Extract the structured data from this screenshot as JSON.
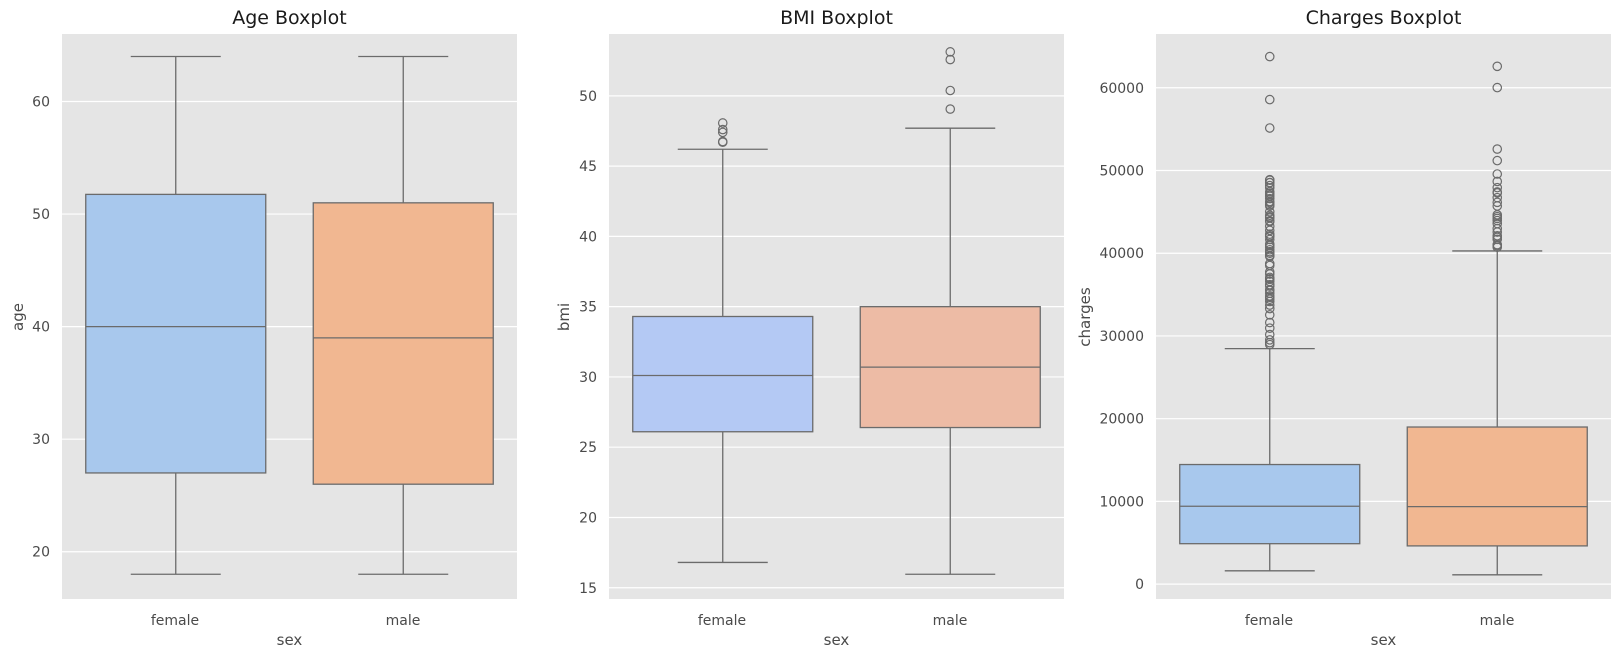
{
  "chart_data": [
    {
      "type": "boxplot",
      "title": "Age Boxplot",
      "xlabel": "sex",
      "ylabel": "age",
      "categories": [
        "female",
        "male"
      ],
      "ylim": [
        15.8,
        66
      ],
      "yticks": [
        20,
        30,
        40,
        50,
        60
      ],
      "ytick_labels": [
        "20",
        "30",
        "40",
        "50",
        "60"
      ],
      "grid": true,
      "boxes": [
        {
          "category": "female",
          "color": "#a8c8ed",
          "whisker_low": 18,
          "q1": 27,
          "median": 40,
          "q3": 51.75,
          "whisker_high": 64,
          "outliers": []
        },
        {
          "category": "male",
          "color": "#f1b791",
          "whisker_low": 18,
          "q1": 26,
          "median": 39,
          "q3": 51,
          "whisker_high": 64,
          "outliers": []
        }
      ]
    },
    {
      "type": "boxplot",
      "title": "BMI Boxplot",
      "xlabel": "sex",
      "ylabel": "bmi",
      "categories": [
        "female",
        "male"
      ],
      "ylim": [
        14.2,
        54.4
      ],
      "yticks": [
        15,
        20,
        25,
        30,
        35,
        40,
        45,
        50
      ],
      "ytick_labels": [
        "15",
        "20",
        "25",
        "30",
        "35",
        "40",
        "45",
        "50"
      ],
      "grid": true,
      "boxes": [
        {
          "category": "female",
          "color": "#b4c9f4",
          "whisker_low": 16.8,
          "q1": 26.1,
          "median": 30.1,
          "q3": 34.3,
          "whisker_high": 46.2,
          "outliers": [
            46.7,
            46.75,
            47.4,
            47.6,
            48.07
          ]
        },
        {
          "category": "male",
          "color": "#edbba5",
          "whisker_low": 15.96,
          "q1": 26.4,
          "median": 30.7,
          "q3": 35.0,
          "whisker_high": 47.7,
          "outliers": [
            49.06,
            50.38,
            52.58,
            53.13
          ]
        }
      ]
    },
    {
      "type": "boxplot",
      "title": "Charges Boxplot",
      "xlabel": "sex",
      "ylabel": "charges",
      "categories": [
        "female",
        "male"
      ],
      "ylim": [
        -1800,
        66500
      ],
      "yticks": [
        0,
        10000,
        20000,
        30000,
        40000,
        50000,
        60000
      ],
      "ytick_labels": [
        "0",
        "10000",
        "20000",
        "30000",
        "40000",
        "50000",
        "60000"
      ],
      "grid": true,
      "boxes": [
        {
          "category": "female",
          "color": "#a8c8ed",
          "whisker_low": 1608,
          "q1": 4886,
          "median": 9413,
          "q3": 14455,
          "whisker_high": 28468,
          "outliers": [
            28950,
            29186,
            29523,
            30166,
            30942,
            31620,
            32548,
            33307,
            33732,
            34166,
            34439,
            34672,
            34838,
            35160,
            35491,
            35585,
            36021,
            36197,
            36580,
            36837,
            36910,
            37079,
            37484,
            37742,
            38511,
            38746,
            39611,
            39725,
            40003,
            40182,
            40419,
            40720,
            40941,
            41097,
            41661,
            41999,
            42112,
            42303,
            42760,
            43254,
            43813,
            43921,
            44260,
            44400,
            44585,
            45008,
            45702,
            45863,
            46113,
            46255,
            46599,
            46889,
            47055,
            47269,
            47462,
            47896,
            48173,
            48517,
            48549,
            48824,
            48885,
            55135,
            58571,
            63770
          ]
        },
        {
          "category": "male",
          "color": "#f1b791",
          "whisker_low": 1122,
          "q1": 4619,
          "median": 9370,
          "q3": 18990,
          "whisker_high": 40273,
          "outliers": [
            40720,
            40904,
            41034,
            41676,
            41919,
            42111,
            42560,
            42969,
            43578,
            43943,
            44202,
            44423,
            44641,
            45710,
            46151,
            46718,
            47291,
            47403,
            47928,
            48675,
            49577,
            51195,
            52591,
            60021,
            62593
          ]
        }
      ]
    }
  ]
}
